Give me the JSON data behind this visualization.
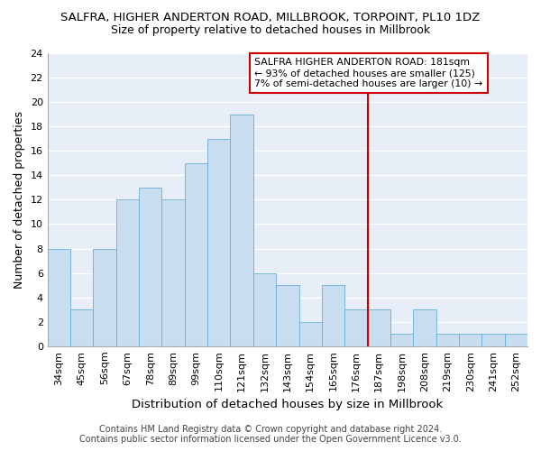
{
  "title": "SALFRA, HIGHER ANDERTON ROAD, MILLBROOK, TORPOINT, PL10 1DZ",
  "subtitle": "Size of property relative to detached houses in Millbrook",
  "xlabel": "Distribution of detached houses by size in Millbrook",
  "ylabel": "Number of detached properties",
  "categories": [
    "34sqm",
    "45sqm",
    "56sqm",
    "67sqm",
    "78sqm",
    "89sqm",
    "99sqm",
    "110sqm",
    "121sqm",
    "132sqm",
    "143sqm",
    "154sqm",
    "165sqm",
    "176sqm",
    "187sqm",
    "198sqm",
    "208sqm",
    "219sqm",
    "230sqm",
    "241sqm",
    "252sqm"
  ],
  "values": [
    8,
    3,
    8,
    12,
    13,
    12,
    15,
    17,
    19,
    6,
    5,
    2,
    5,
    3,
    3,
    1,
    3,
    1,
    1,
    1,
    1
  ],
  "bar_color": "#c8ddf0",
  "bar_edge_color": "#6baed6",
  "ylim": [
    0,
    24
  ],
  "yticks": [
    0,
    2,
    4,
    6,
    8,
    10,
    12,
    14,
    16,
    18,
    20,
    22,
    24
  ],
  "vline_color": "#cc0000",
  "vline_x_index": 14,
  "annotation_lines": [
    "SALFRA HIGHER ANDERTON ROAD: 181sqm",
    "← 93% of detached houses are smaller (125)",
    "7% of semi-detached houses are larger (10) →"
  ],
  "annotation_box_color": "#ffffff",
  "annotation_box_edge_color": "#cc0000",
  "footer_line1": "Contains HM Land Registry data © Crown copyright and database right 2024.",
  "footer_line2": "Contains public sector information licensed under the Open Government Licence v3.0.",
  "fig_background_color": "#ffffff",
  "plot_background_color": "#e8eef8",
  "grid_color": "#ffffff",
  "title_fontsize": 9.5,
  "subtitle_fontsize": 9,
  "tick_fontsize": 8,
  "ylabel_fontsize": 9,
  "xlabel_fontsize": 9.5,
  "footer_fontsize": 7
}
